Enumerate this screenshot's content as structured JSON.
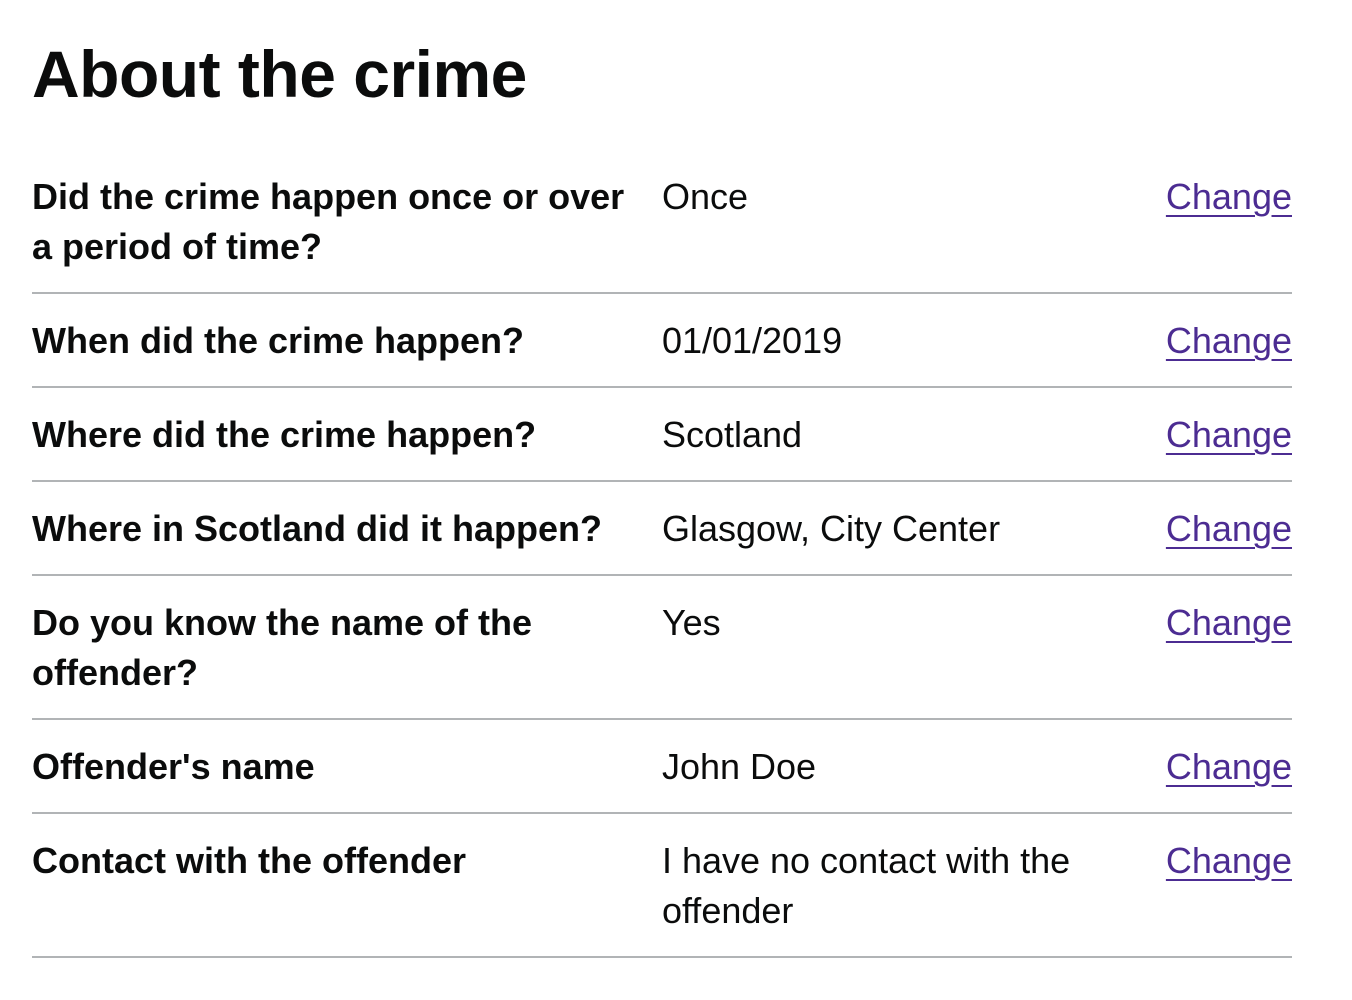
{
  "page": {
    "title": "About the crime"
  },
  "summary": {
    "rows": [
      {
        "key": "Did the crime happen once or over a period of time?",
        "value": "Once",
        "action": "Change"
      },
      {
        "key": "When did the crime happen?",
        "value": "01/01/2019",
        "action": "Change"
      },
      {
        "key": "Where did the crime happen?",
        "value": "Scotland",
        "action": "Change"
      },
      {
        "key": "Where in Scotland did it happen?",
        "value": "Glasgow, City Center",
        "action": "Change"
      },
      {
        "key": "Do you know the name of the offender?",
        "value": "Yes",
        "action": "Change"
      },
      {
        "key": "Offender's name",
        "value": "John Doe",
        "action": "Change"
      },
      {
        "key": "Contact with the offender",
        "value": "I have no contact with the offender",
        "action": "Change"
      }
    ]
  },
  "colors": {
    "text": "#0b0c0c",
    "link": "#4c2c92",
    "border": "#b1b4b6"
  }
}
